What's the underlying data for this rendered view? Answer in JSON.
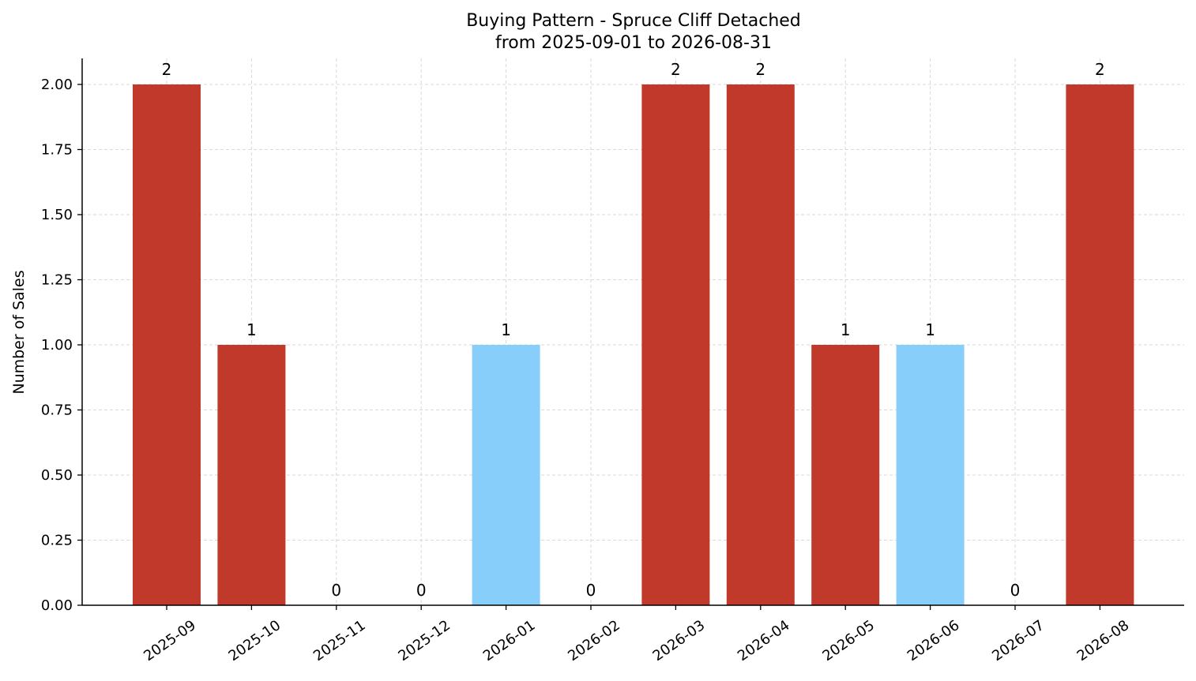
{
  "chart_data": {
    "type": "bar",
    "title": "Buying Pattern - Spruce Cliff Detached",
    "subtitle": "from 2025-09-01 to 2026-08-31",
    "xlabel": "",
    "ylabel": "Number of Sales",
    "categories": [
      "2025-09",
      "2025-10",
      "2025-11",
      "2025-12",
      "2026-01",
      "2026-02",
      "2026-03",
      "2026-04",
      "2026-05",
      "2026-06",
      "2026-07",
      "2026-08"
    ],
    "values": [
      2,
      1,
      0,
      0,
      1,
      0,
      2,
      2,
      1,
      1,
      0,
      2
    ],
    "bar_colors": [
      "#c0392b",
      "#c0392b",
      "#c0392b",
      "#c0392b",
      "#87cefa",
      "#c0392b",
      "#c0392b",
      "#c0392b",
      "#c0392b",
      "#87cefa",
      "#c0392b",
      "#c0392b"
    ],
    "data_labels": [
      "2",
      "1",
      "0",
      "0",
      "1",
      "0",
      "2",
      "2",
      "1",
      "1",
      "0",
      "2"
    ],
    "yticks": [
      "0.00",
      "0.25",
      "0.50",
      "0.75",
      "1.00",
      "1.25",
      "1.50",
      "1.75",
      "2.00"
    ],
    "ylim": [
      0,
      2.1
    ],
    "grid": true
  }
}
